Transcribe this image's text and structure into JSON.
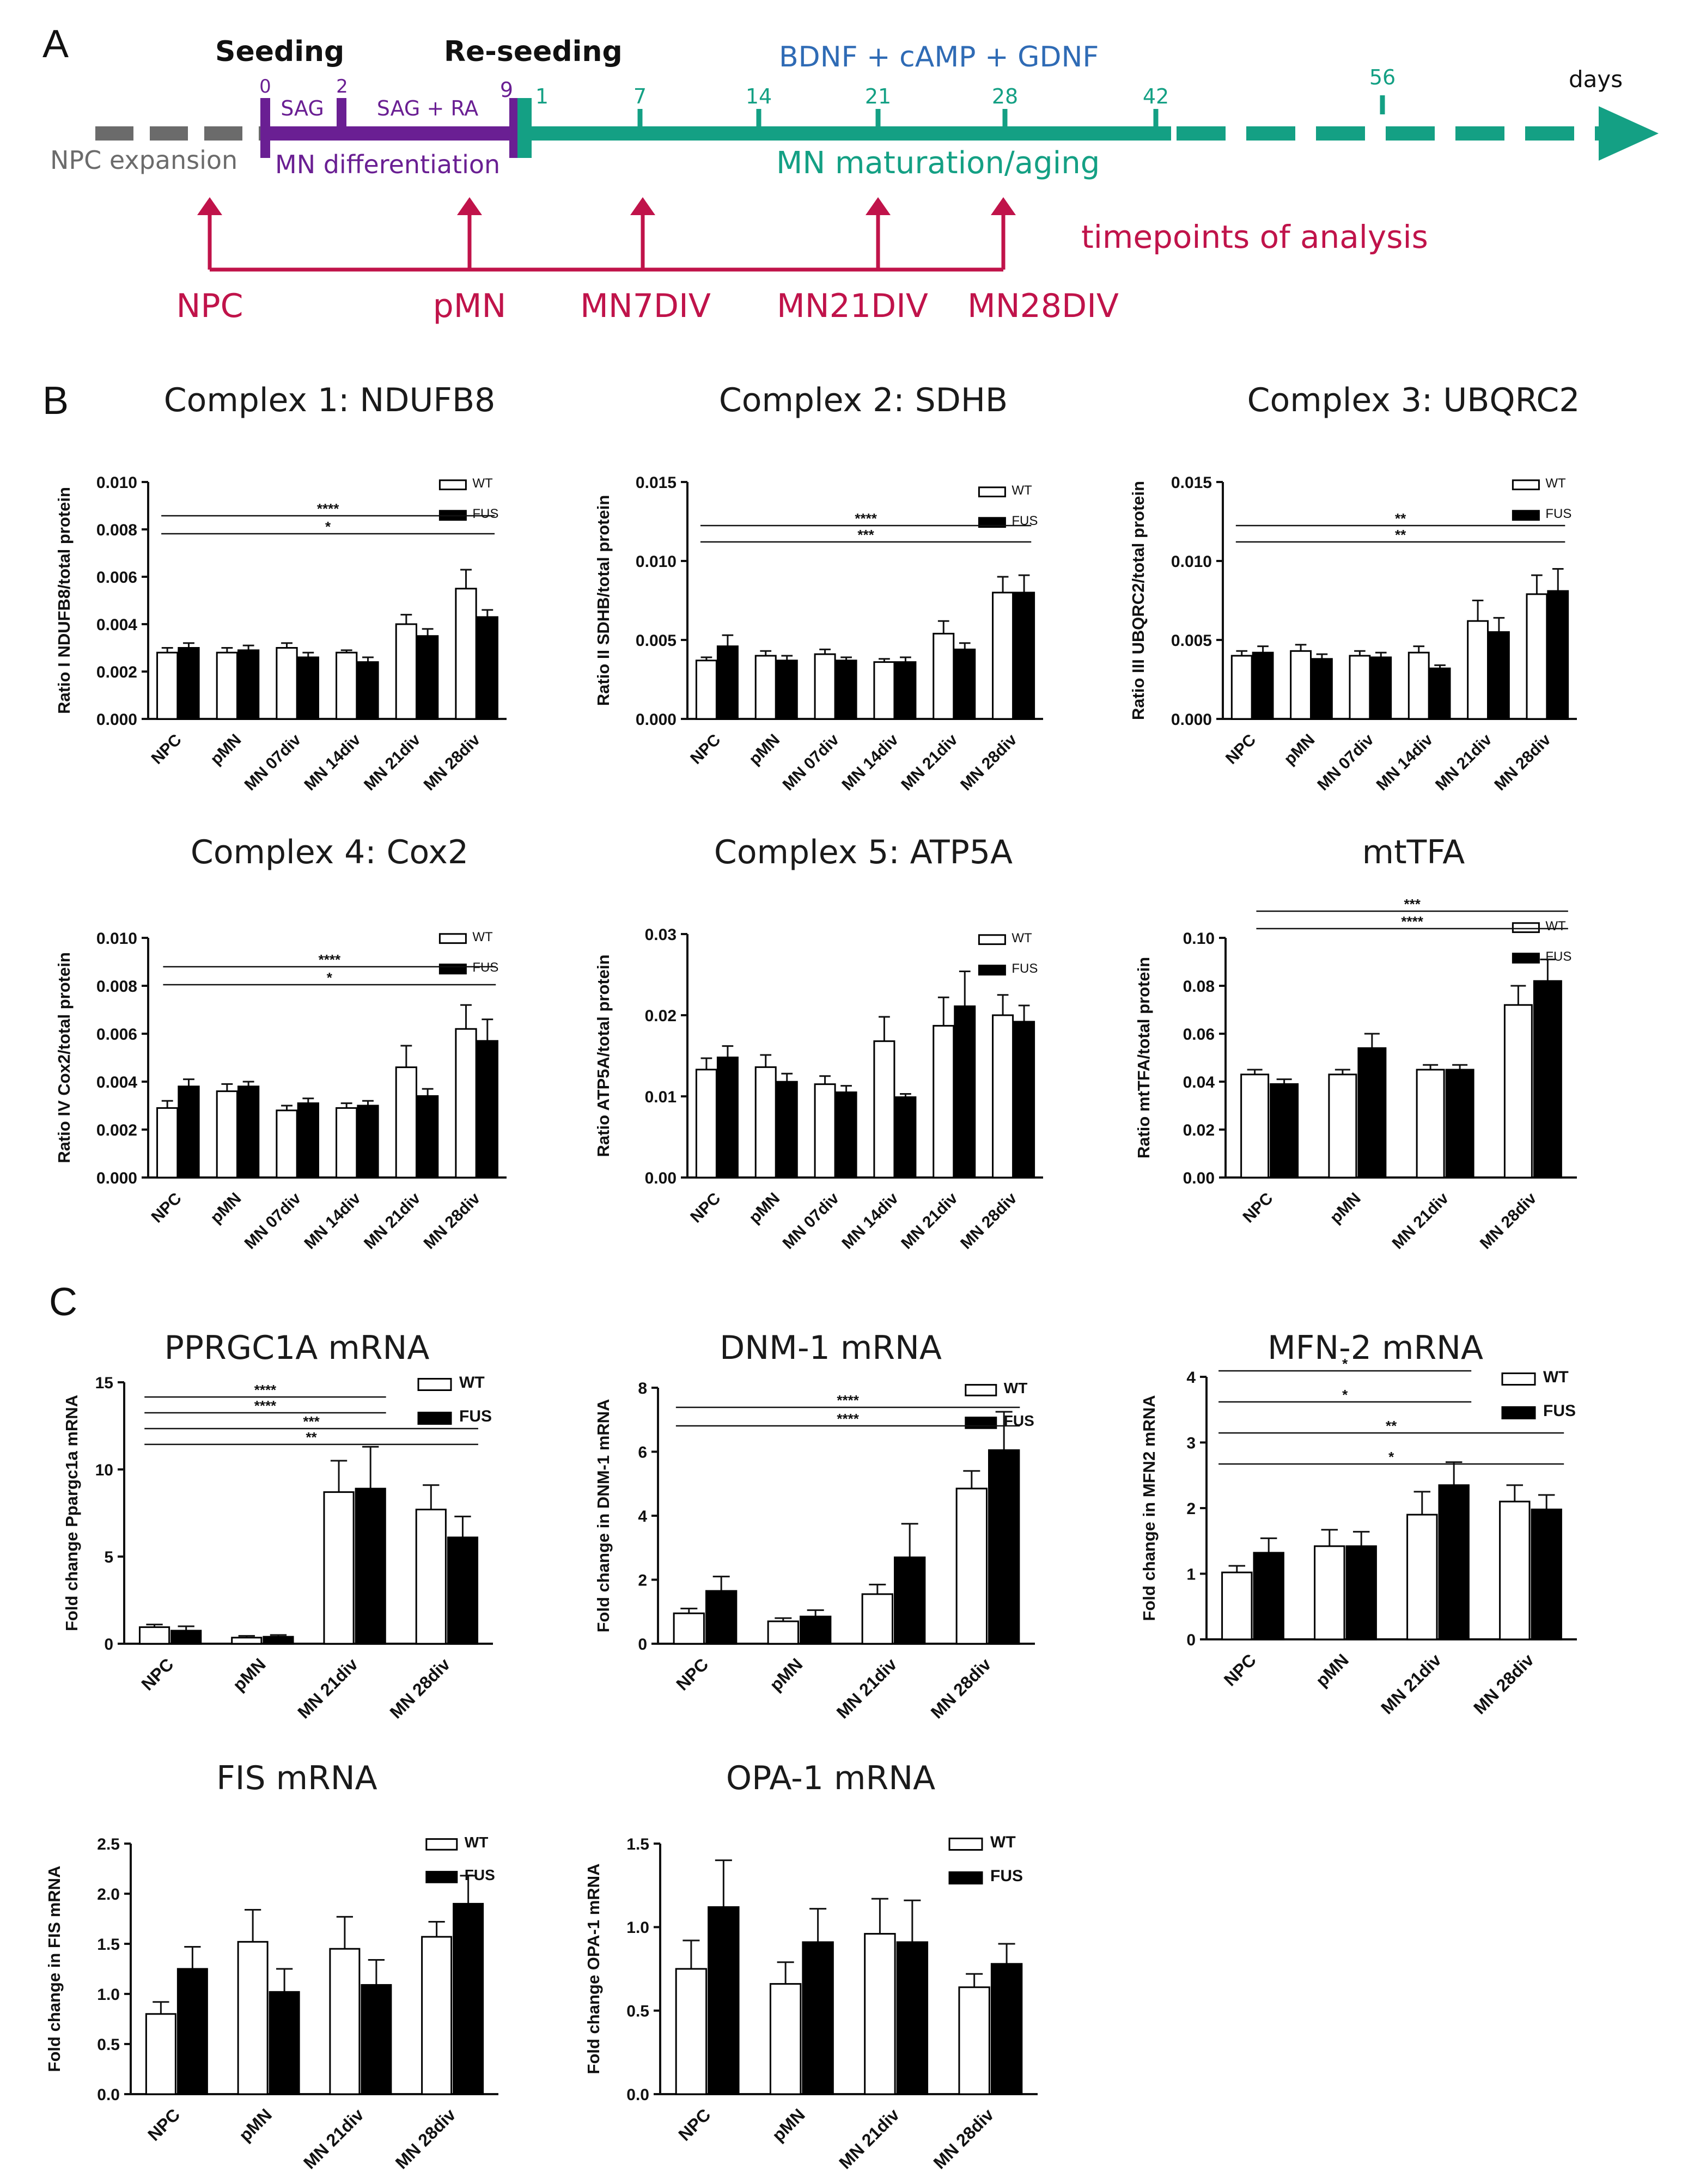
{
  "panels": {
    "a": "A",
    "b": "B",
    "c": "C"
  },
  "timeline": {
    "seeding": "Seeding",
    "reseeding": "Re-seeding",
    "factors": "BDNF + cAMP + GDNF",
    "days_label": "days",
    "ticks_purple": [
      "0",
      "2",
      "9"
    ],
    "ticks_green": [
      "1",
      "7",
      "14",
      "21",
      "28",
      "42",
      "56"
    ],
    "sag": "SAG",
    "sag_ra": "SAG + RA",
    "npc_expansion": "NPC expansion",
    "mn_differentiation": "MN differentiation",
    "mn_maturation": "MN  maturation/aging",
    "timepoints": "timepoints of analysis",
    "analysis_points": [
      "NPC",
      "pMN",
      "MN7DIV",
      "MN21DIV",
      "MN28DIV"
    ],
    "colors": {
      "grey": "#6b6b6b",
      "purple": "#6a1f93",
      "green": "#14a084",
      "red": "#c0134a",
      "blue": "#2f6bb5"
    }
  },
  "chart_data": [
    {
      "type": "bar",
      "title": "Complex 1:   NDUFB8",
      "ylabel": "Ratio I NDUFB8/total protein",
      "categories": [
        "NPC",
        "pMN",
        "MN 07div",
        "MN 14div",
        "MN 21div",
        "MN 28div"
      ],
      "series": [
        {
          "name": "WT",
          "values": [
            0.0028,
            0.0028,
            0.003,
            0.0028,
            0.004,
            0.0055
          ],
          "errors": [
            0.0002,
            0.0002,
            0.0002,
            0.0001,
            0.0004,
            0.0008
          ]
        },
        {
          "name": "FUS",
          "values": [
            0.003,
            0.0029,
            0.0026,
            0.0024,
            0.0035,
            0.0043
          ],
          "errors": [
            0.0002,
            0.0002,
            0.0002,
            0.0002,
            0.0003,
            0.0003
          ]
        }
      ],
      "ylim": [
        0,
        0.01
      ],
      "yticks": [
        "0.000",
        "0.002",
        "0.004",
        "0.006",
        "0.008",
        "0.010"
      ],
      "significance": [
        {
          "from": 0,
          "to": 5,
          "label": "*"
        },
        {
          "from": 0,
          "to": 5,
          "label": "****"
        }
      ]
    },
    {
      "type": "bar",
      "title": "Complex 2:   SDHB",
      "ylabel": "Ratio II SDHB/total protein",
      "categories": [
        "NPC",
        "pMN",
        "MN 07div",
        "MN 14div",
        "MN 21div",
        "MN 28div"
      ],
      "series": [
        {
          "name": "WT",
          "values": [
            0.0037,
            0.004,
            0.0041,
            0.0036,
            0.0054,
            0.008
          ],
          "errors": [
            0.0002,
            0.0003,
            0.0003,
            0.0002,
            0.0008,
            0.001
          ]
        },
        {
          "name": "FUS",
          "values": [
            0.0046,
            0.0037,
            0.0037,
            0.0036,
            0.0044,
            0.008
          ],
          "errors": [
            0.0007,
            0.0003,
            0.0002,
            0.0003,
            0.0004,
            0.0011
          ]
        }
      ],
      "ylim": [
        0,
        0.015
      ],
      "yticks": [
        "0.000",
        "0.005",
        "0.010",
        "0.015"
      ],
      "significance": [
        {
          "from": 0,
          "to": 5,
          "label": "***"
        },
        {
          "from": 0,
          "to": 5,
          "label": "****"
        }
      ]
    },
    {
      "type": "bar",
      "title": "Complex 3:   UBQRC2",
      "ylabel": "Ratio III UBQRC2/total protein",
      "categories": [
        "NPC",
        "pMN",
        "MN 07div",
        "MN 14div",
        "MN 21div",
        "MN 28div"
      ],
      "series": [
        {
          "name": "WT",
          "values": [
            0.004,
            0.0043,
            0.004,
            0.0042,
            0.0062,
            0.0079
          ],
          "errors": [
            0.0003,
            0.0004,
            0.0003,
            0.0004,
            0.0013,
            0.0012
          ]
        },
        {
          "name": "FUS",
          "values": [
            0.0042,
            0.0038,
            0.0039,
            0.0032,
            0.0055,
            0.0081
          ],
          "errors": [
            0.0004,
            0.0003,
            0.0003,
            0.0002,
            0.0009,
            0.0014
          ]
        }
      ],
      "ylim": [
        0,
        0.015
      ],
      "yticks": [
        "0.000",
        "0.005",
        "0.010",
        "0.015"
      ],
      "significance": [
        {
          "from": 0,
          "to": 5,
          "label": "**"
        },
        {
          "from": 0,
          "to": 5,
          "label": "**"
        }
      ]
    },
    {
      "type": "bar",
      "title": "Complex 4:   Cox2",
      "ylabel": "Ratio IV Cox2/total protein",
      "categories": [
        "NPC",
        "pMN",
        "MN 07div",
        "MN 14div",
        "MN 21div",
        "MN 28div"
      ],
      "series": [
        {
          "name": "WT",
          "values": [
            0.0029,
            0.0036,
            0.0028,
            0.0029,
            0.0046,
            0.0062
          ],
          "errors": [
            0.0003,
            0.0003,
            0.0002,
            0.0002,
            0.0009,
            0.001
          ]
        },
        {
          "name": "FUS",
          "values": [
            0.0038,
            0.0038,
            0.0031,
            0.003,
            0.0034,
            0.0057
          ],
          "errors": [
            0.0003,
            0.0002,
            0.0002,
            0.0002,
            0.0003,
            0.0009
          ]
        }
      ],
      "ylim": [
        0,
        0.01
      ],
      "yticks": [
        "0.000",
        "0.002",
        "0.004",
        "0.006",
        "0.008",
        "0.010"
      ],
      "significance": [
        {
          "from": 0,
          "to": 5,
          "label": "*"
        },
        {
          "from": 0,
          "to": 5,
          "label": "****"
        }
      ]
    },
    {
      "type": "bar",
      "title": "Complex 5:   ATP5A",
      "ylabel": "Ratio ATP5A/total protein",
      "categories": [
        "NPC",
        "pMN",
        "MN 07div",
        "MN 14div",
        "MN 21div",
        "MN 28div"
      ],
      "series": [
        {
          "name": "WT",
          "values": [
            0.0133,
            0.0136,
            0.0115,
            0.0168,
            0.0187,
            0.02
          ],
          "errors": [
            0.0014,
            0.0015,
            0.001,
            0.003,
            0.0035,
            0.0025
          ]
        },
        {
          "name": "FUS",
          "values": [
            0.0148,
            0.0118,
            0.0105,
            0.0099,
            0.0211,
            0.0192
          ],
          "errors": [
            0.0014,
            0.001,
            0.0008,
            0.0004,
            0.0043,
            0.002
          ]
        }
      ],
      "ylim": [
        0,
        0.03
      ],
      "yticks": [
        "0.00",
        "0.01",
        "0.02",
        "0.03"
      ],
      "significance": []
    },
    {
      "type": "bar",
      "title": "mtTFA",
      "ylabel": "Ratio mtTFA/total protein",
      "categories": [
        "NPC",
        "pMN",
        "MN 21div",
        "MN 28div"
      ],
      "series": [
        {
          "name": "WT",
          "values": [
            0.043,
            0.043,
            0.045,
            0.072
          ],
          "errors": [
            0.002,
            0.002,
            0.002,
            0.008
          ]
        },
        {
          "name": "FUS",
          "values": [
            0.039,
            0.054,
            0.045,
            0.082
          ],
          "errors": [
            0.002,
            0.006,
            0.002,
            0.009
          ]
        }
      ],
      "ylim": [
        0,
        0.1
      ],
      "yticks": [
        "0.00",
        "0.02",
        "0.04",
        "0.06",
        "0.08",
        "0.10"
      ],
      "significance": [
        {
          "from": 0,
          "to": 3,
          "label": "****"
        },
        {
          "from": 0,
          "to": 3,
          "label": "***"
        }
      ]
    },
    {
      "type": "bar",
      "title": "PPRGC1A mRNA",
      "ylabel": "Fold change Ppargc1a  mRNA",
      "categories": [
        "NPC",
        "pMN",
        "MN 21div",
        "MN 28div"
      ],
      "series": [
        {
          "name": "WT",
          "values": [
            0.95,
            0.35,
            8.7,
            7.7
          ],
          "errors": [
            0.15,
            0.1,
            1.8,
            1.4
          ]
        },
        {
          "name": "FUS",
          "values": [
            0.75,
            0.4,
            8.9,
            6.1
          ],
          "errors": [
            0.25,
            0.1,
            2.4,
            1.2
          ]
        }
      ],
      "ylim": [
        0,
        15
      ],
      "yticks": [
        "0",
        "5",
        "10",
        "15"
      ],
      "significance": [
        {
          "from": 0,
          "to": 3,
          "label": "**"
        },
        {
          "from": 0,
          "to": 3,
          "label": "***"
        },
        {
          "from": 0,
          "to": 2,
          "label": "****"
        },
        {
          "from": 0,
          "to": 2,
          "label": "****"
        }
      ]
    },
    {
      "type": "bar",
      "title": "DNM-1 mRNA",
      "ylabel": "Fold change in DNM-1 mRNA",
      "categories": [
        "NPC",
        "pMN",
        "MN 21div",
        "MN 28div"
      ],
      "series": [
        {
          "name": "WT",
          "values": [
            0.95,
            0.7,
            1.55,
            4.85
          ],
          "errors": [
            0.15,
            0.1,
            0.3,
            0.55
          ]
        },
        {
          "name": "FUS",
          "values": [
            1.65,
            0.85,
            2.7,
            6.05
          ],
          "errors": [
            0.45,
            0.2,
            1.05,
            1.2
          ]
        }
      ],
      "ylim": [
        0,
        8
      ],
      "yticks": [
        "0",
        "2",
        "4",
        "6",
        "8"
      ],
      "significance": [
        {
          "from": 0,
          "to": 3,
          "label": "****"
        },
        {
          "from": 0,
          "to": 3,
          "label": "****"
        }
      ]
    },
    {
      "type": "bar",
      "title": "MFN-2 mRNA",
      "ylabel": "Fold change in MFN2 mRNA",
      "categories": [
        "NPC",
        "pMN",
        "MN 21div",
        "MN 28div"
      ],
      "series": [
        {
          "name": "WT",
          "values": [
            1.02,
            1.42,
            1.9,
            2.1
          ],
          "errors": [
            0.1,
            0.25,
            0.35,
            0.25
          ]
        },
        {
          "name": "FUS",
          "values": [
            1.32,
            1.42,
            2.35,
            1.98
          ],
          "errors": [
            0.22,
            0.22,
            0.35,
            0.22
          ]
        }
      ],
      "ylim": [
        0,
        4
      ],
      "yticks": [
        "0",
        "1",
        "2",
        "3",
        "4"
      ],
      "significance": [
        {
          "from": 0,
          "to": 3,
          "label": "*"
        },
        {
          "from": 0,
          "to": 3,
          "label": "**"
        },
        {
          "from": 0,
          "to": 2,
          "label": "*"
        },
        {
          "from": 0,
          "to": 2,
          "label": "*"
        }
      ]
    },
    {
      "type": "bar",
      "title": "FIS mRNA",
      "ylabel": "Fold change in FIS mRNA",
      "categories": [
        "NPC",
        "pMN",
        "MN 21div",
        "MN 28div"
      ],
      "series": [
        {
          "name": "WT",
          "values": [
            0.8,
            1.52,
            1.45,
            1.57
          ],
          "errors": [
            0.12,
            0.32,
            0.32,
            0.15
          ]
        },
        {
          "name": "FUS",
          "values": [
            1.25,
            1.02,
            1.09,
            1.9
          ],
          "errors": [
            0.22,
            0.23,
            0.25,
            0.28
          ]
        }
      ],
      "ylim": [
        0,
        2.5
      ],
      "yticks": [
        "0.0",
        "0.5",
        "1.0",
        "1.5",
        "2.0",
        "2.5"
      ],
      "significance": []
    },
    {
      "type": "bar",
      "title": "OPA-1 mRNA",
      "ylabel": "Fold change OPA-1 mRNA",
      "categories": [
        "NPC",
        "pMN",
        "MN 21div",
        "MN 28div"
      ],
      "series": [
        {
          "name": "WT",
          "values": [
            0.75,
            0.66,
            0.96,
            0.64
          ],
          "errors": [
            0.17,
            0.13,
            0.21,
            0.08
          ]
        },
        {
          "name": "FUS",
          "values": [
            1.12,
            0.91,
            0.91,
            0.78
          ],
          "errors": [
            0.28,
            0.2,
            0.25,
            0.12
          ]
        }
      ],
      "ylim": [
        0,
        1.5
      ],
      "yticks": [
        "0.0",
        "0.5",
        "1.0",
        "1.5"
      ],
      "significance": []
    }
  ]
}
